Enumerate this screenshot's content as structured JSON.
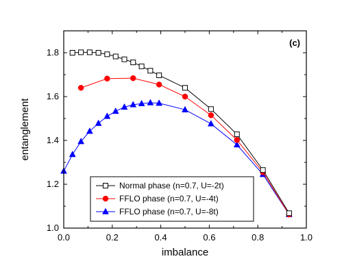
{
  "chart_data": {
    "type": "line",
    "panel_label": "(c)",
    "xlabel": "imbalance",
    "ylabel": "entanglement",
    "xlim": [
      0.0,
      1.0
    ],
    "ylim": [
      1.0,
      1.9
    ],
    "x_ticks": [
      0.0,
      0.2,
      0.4,
      0.6,
      0.8,
      1.0
    ],
    "x_tick_labels": [
      "0.0",
      "0.2",
      "0.4",
      "0.6",
      "0.8",
      "1.0"
    ],
    "y_ticks": [
      1.0,
      1.2,
      1.4,
      1.6,
      1.8
    ],
    "y_tick_labels": [
      "1.0",
      "1.2",
      "1.4",
      "1.6",
      "1.8"
    ],
    "grid": false,
    "legend_position": "bottom-left",
    "series": [
      {
        "name": "Normal phase (n=0.7, U=-2t)",
        "color": "#000000",
        "marker": "open-square",
        "x": [
          0.036,
          0.071,
          0.107,
          0.143,
          0.179,
          0.214,
          0.25,
          0.286,
          0.321,
          0.357,
          0.393,
          0.5,
          0.607,
          0.714,
          0.821,
          0.929
        ],
        "y": [
          1.8,
          1.802,
          1.802,
          1.8,
          1.793,
          1.783,
          1.77,
          1.756,
          1.738,
          1.718,
          1.697,
          1.64,
          1.543,
          1.428,
          1.265,
          1.068
        ]
      },
      {
        "name": "FFLO phase (n=0.7, U=-4t)",
        "color": "#ff0000",
        "marker": "filled-circle",
        "x": [
          0.071,
          0.179,
          0.286,
          0.393,
          0.5,
          0.607,
          0.714,
          0.821,
          0.929
        ],
        "y": [
          1.64,
          1.682,
          1.684,
          1.655,
          1.6,
          1.515,
          1.402,
          1.255,
          1.062
        ]
      },
      {
        "name": "FFLO phase (n=0.7, U=-8t)",
        "color": "#0000ff",
        "marker": "filled-triangle",
        "x": [
          0.0,
          0.036,
          0.071,
          0.107,
          0.143,
          0.179,
          0.214,
          0.25,
          0.286,
          0.321,
          0.357,
          0.393,
          0.5,
          0.607,
          0.714,
          0.821,
          0.929
        ],
        "y": [
          1.26,
          1.336,
          1.395,
          1.442,
          1.478,
          1.51,
          1.533,
          1.552,
          1.563,
          1.568,
          1.572,
          1.57,
          1.54,
          1.476,
          1.38,
          1.245,
          1.062
        ]
      }
    ]
  }
}
